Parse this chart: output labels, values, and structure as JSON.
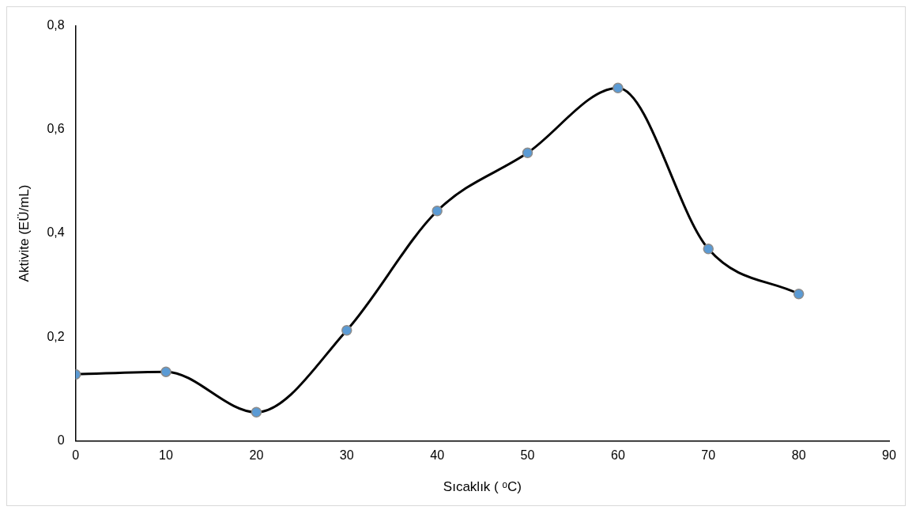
{
  "chart_data": {
    "type": "line",
    "xlabel": "Sıcaklık ( ᵒC)",
    "ylabel": "Aktivite (EÜ/mL)",
    "x": [
      0,
      10,
      20,
      30,
      40,
      50,
      60,
      70,
      80
    ],
    "series": [
      {
        "color": "#000000",
        "values": [
          0.128,
          0.133,
          0.055,
          0.213,
          0.443,
          0.555,
          0.68,
          0.37,
          0.283
        ]
      }
    ],
    "xlim": [
      0,
      90
    ],
    "xticks": [
      0,
      10,
      20,
      30,
      40,
      50,
      60,
      70,
      80,
      90
    ],
    "ylim": [
      0,
      0.8
    ],
    "yticks": [
      {
        "value": 0,
        "label": "0"
      },
      {
        "value": 0.2,
        "label": "0,2"
      },
      {
        "value": 0.4,
        "label": "0,4"
      },
      {
        "value": 0.6,
        "label": "0,6"
      },
      {
        "value": 0.8,
        "label": "0,8"
      }
    ],
    "grid": false,
    "legend": false,
    "marker": "circle",
    "line_style": "solid"
  }
}
